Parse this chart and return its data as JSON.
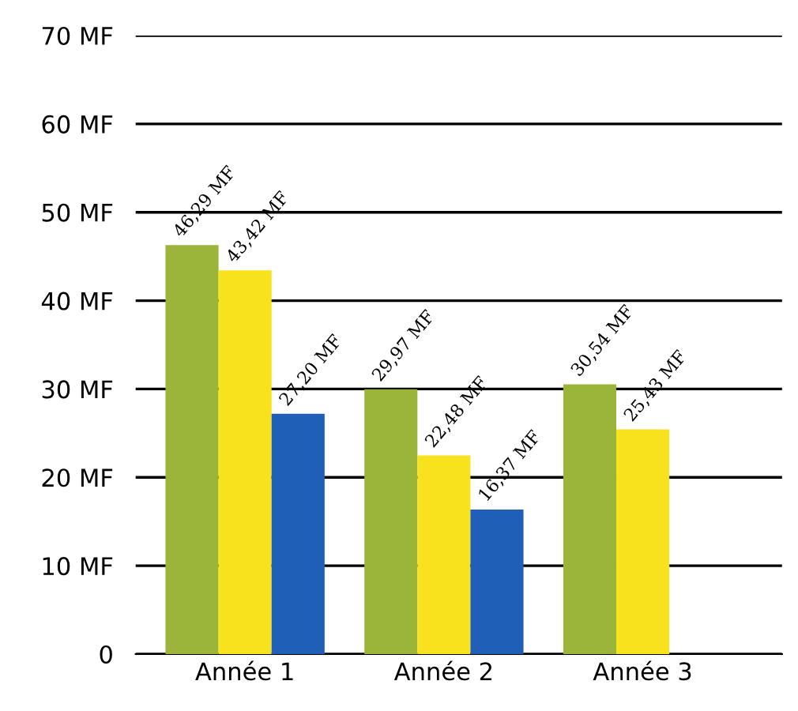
{
  "chart_data": {
    "type": "bar",
    "categories": [
      "Année 1",
      "Année 2",
      "Année 3"
    ],
    "series": [
      {
        "color": "#9bb53a",
        "values": [
          46.29,
          29.97,
          30.54
        ],
        "value_labels": [
          "46,29 MF",
          "29,97 MF",
          "30,54 MF"
        ]
      },
      {
        "color": "#f8e21e",
        "values": [
          43.42,
          22.48,
          25.43
        ],
        "value_labels": [
          "43,42 MF",
          "22,48 MF",
          "25,43 MF"
        ]
      },
      {
        "color": "#1f5fb8",
        "values": [
          27.2,
          16.37,
          null
        ],
        "value_labels": [
          "27,20 MF",
          "16,37 MF",
          null
        ]
      }
    ],
    "ylim": [
      0,
      70
    ],
    "yticks": [
      {
        "value": 0,
        "label": "0"
      },
      {
        "value": 10,
        "label": "10 MF"
      },
      {
        "value": 20,
        "label": "20 MF"
      },
      {
        "value": 30,
        "label": "30 MF"
      },
      {
        "value": 40,
        "label": "40 MF"
      },
      {
        "value": 50,
        "label": "50 MF"
      },
      {
        "value": 60,
        "label": "60 MF"
      },
      {
        "value": 70,
        "label": "70 MF"
      }
    ],
    "grid": "y",
    "legend": false
  }
}
